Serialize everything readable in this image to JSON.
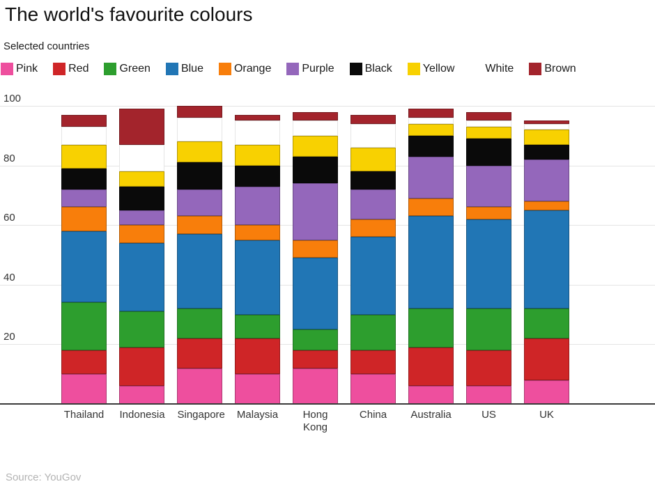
{
  "header": {
    "title": "The world's favourite colours",
    "subtitle": "Selected countries"
  },
  "footer": {
    "source": "Source: YouGov"
  },
  "chart_data": {
    "type": "bar",
    "stacked": true,
    "title": "The world's favourite colours",
    "subtitle": "Selected countries",
    "xlabel": "",
    "ylabel": "",
    "ylim": [
      0,
      100
    ],
    "yticks": [
      20,
      40,
      60,
      80,
      100
    ],
    "grid": true,
    "legend_position": "top",
    "categories": [
      "Thailand",
      "Indonesia",
      "Singapore",
      "Malaysia",
      "Hong Kong",
      "China",
      "Australia",
      "US",
      "UK"
    ],
    "series": [
      {
        "name": "Pink",
        "color": "#ee4f9e",
        "values": [
          10,
          6,
          12,
          10,
          12,
          10,
          6,
          6,
          8
        ]
      },
      {
        "name": "Red",
        "color": "#cf2527",
        "values": [
          8,
          13,
          10,
          12,
          6,
          8,
          13,
          12,
          14
        ]
      },
      {
        "name": "Green",
        "color": "#2d9e2e",
        "values": [
          16,
          12,
          10,
          8,
          7,
          12,
          13,
          14,
          10
        ]
      },
      {
        "name": "Blue",
        "color": "#2176b5",
        "values": [
          24,
          23,
          25,
          25,
          24,
          26,
          31,
          30,
          33
        ]
      },
      {
        "name": "Orange",
        "color": "#f87e0b",
        "values": [
          8,
          6,
          6,
          5,
          6,
          6,
          6,
          4,
          3
        ]
      },
      {
        "name": "Purple",
        "color": "#9467bb",
        "values": [
          6,
          5,
          9,
          13,
          19,
          10,
          14,
          14,
          14
        ]
      },
      {
        "name": "Black",
        "color": "#0a0a0a",
        "values": [
          7,
          8,
          9,
          7,
          9,
          6,
          7,
          9,
          5
        ]
      },
      {
        "name": "Yellow",
        "color": "#f8d101",
        "values": [
          8,
          5,
          7,
          7,
          7,
          8,
          4,
          4,
          5
        ]
      },
      {
        "name": "White",
        "color": "#ffffff",
        "values": [
          6,
          9,
          8,
          8,
          5,
          8,
          2,
          2,
          2
        ]
      },
      {
        "name": "Brown",
        "color": "#a3242c",
        "values": [
          4,
          12,
          4,
          2,
          3,
          3,
          3,
          3,
          1
        ]
      }
    ]
  },
  "style_colors": {
    "axis_line": "#3a3a3a",
    "gridline": "#e4e4e4",
    "tick_text": "#333333",
    "source_text": "#b3b3b3"
  }
}
